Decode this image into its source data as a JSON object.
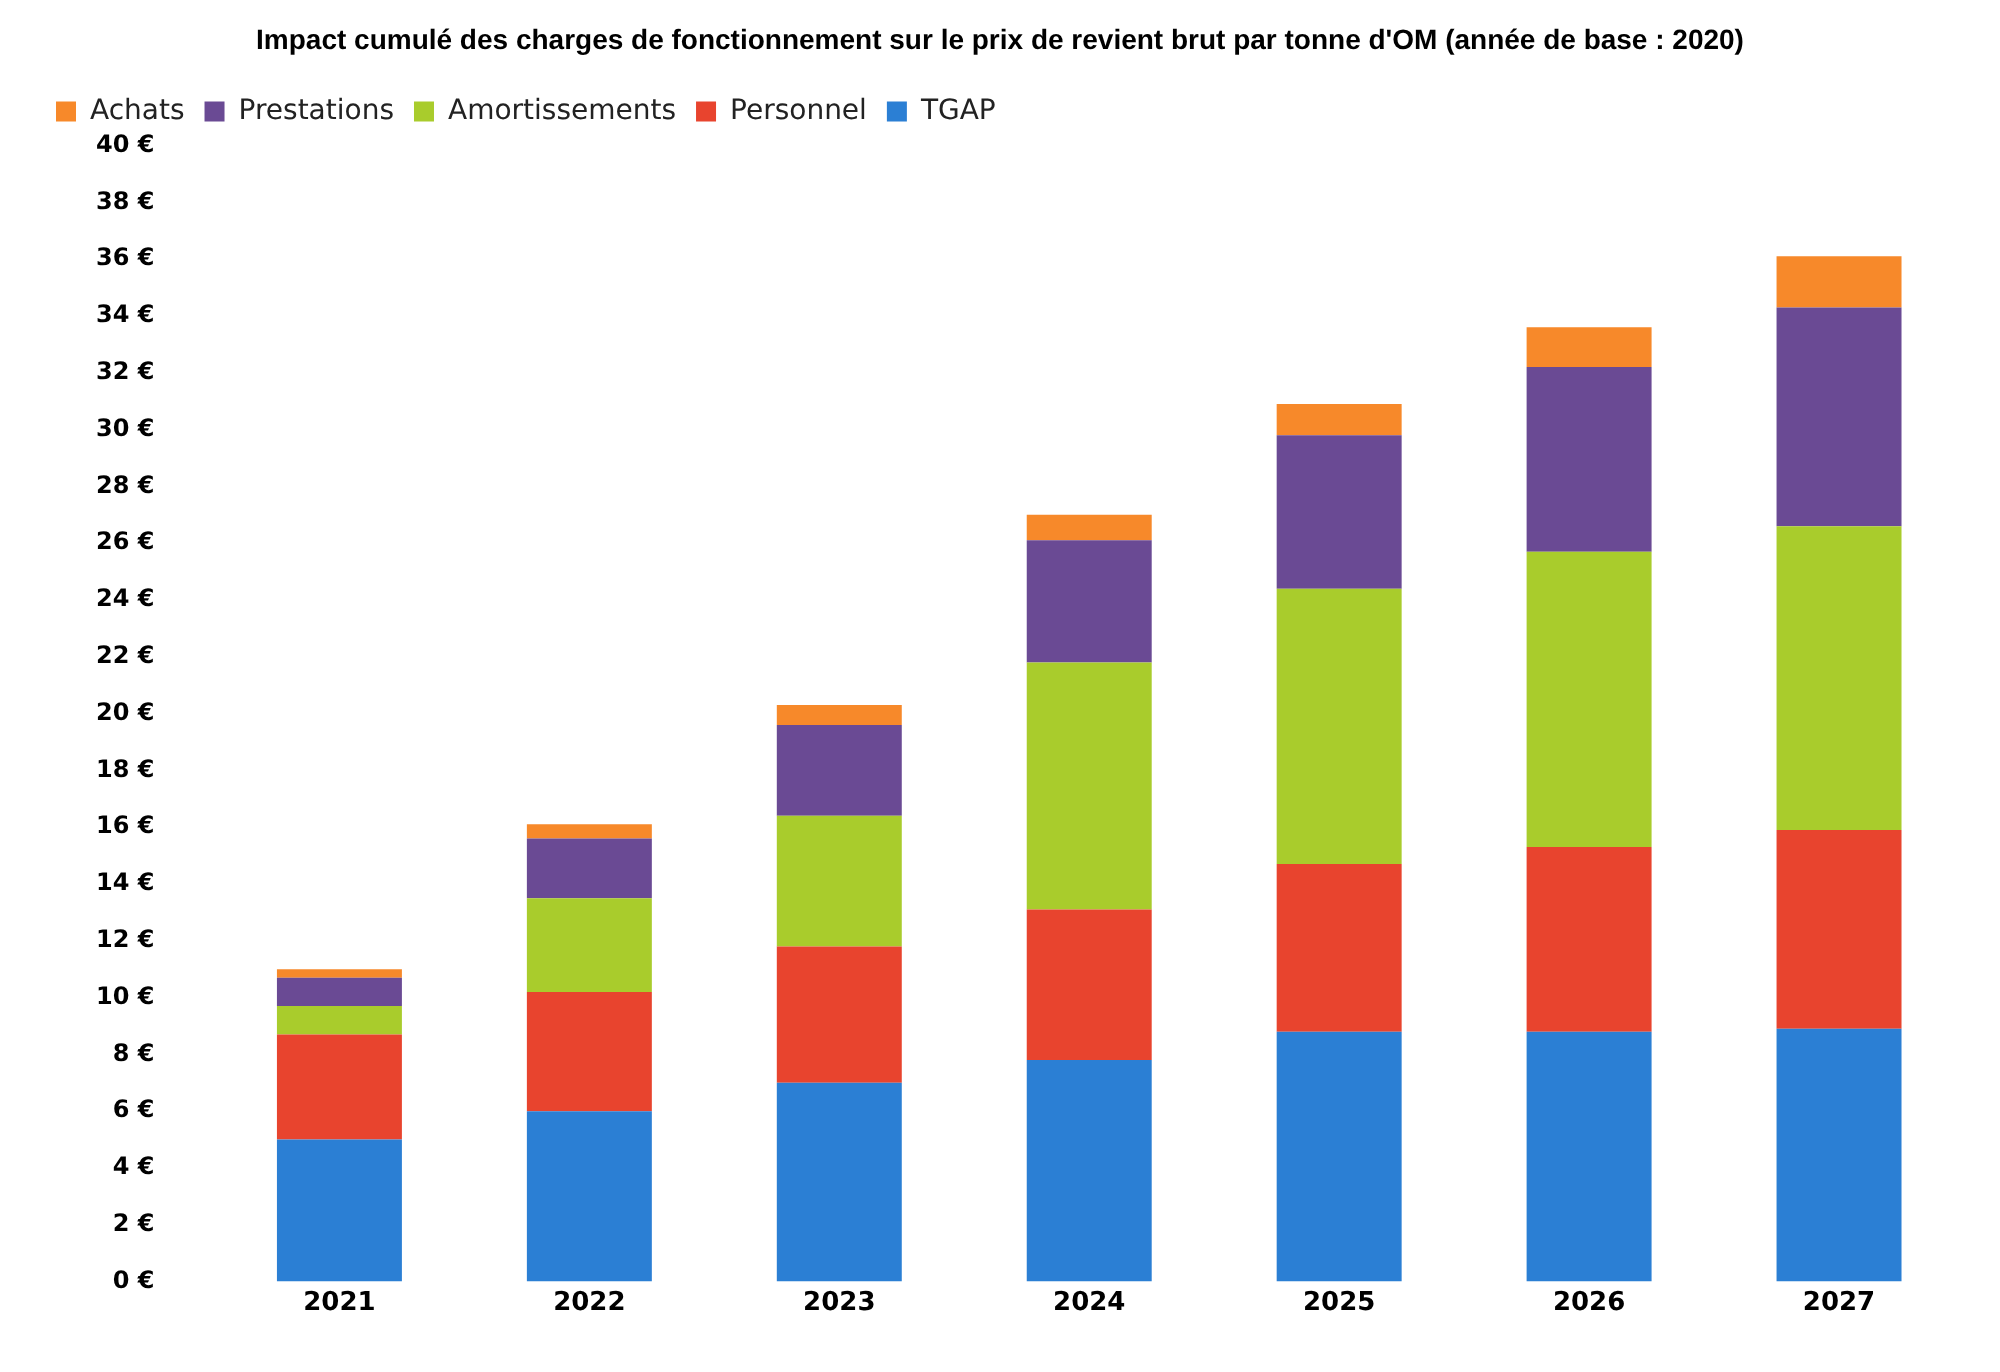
{
  "chart_data": {
    "type": "bar",
    "stacked": true,
    "title": "Impact cumulé des charges de fonctionnement sur le prix de revient brut par tonne d'OM (année de base : 2020)",
    "categories": [
      "2021",
      "2022",
      "2023",
      "2024",
      "2025",
      "2026",
      "2027"
    ],
    "series": [
      {
        "name": "TGAP",
        "color": "#2b7fd4",
        "values": [
          5.0,
          6.0,
          7.0,
          7.8,
          8.8,
          8.8,
          8.9
        ]
      },
      {
        "name": "Personnel",
        "color": "#e8442e",
        "values": [
          3.7,
          4.2,
          4.8,
          5.3,
          5.9,
          6.5,
          7.0
        ]
      },
      {
        "name": "Amortissements",
        "color": "#a9cc2c",
        "values": [
          1.0,
          3.3,
          4.6,
          8.7,
          9.7,
          10.4,
          10.7
        ]
      },
      {
        "name": "Prestations",
        "color": "#6a4a94",
        "values": [
          1.0,
          2.1,
          3.2,
          4.3,
          5.4,
          6.5,
          7.7
        ]
      },
      {
        "name": "Achats",
        "color": "#f7892a",
        "values": [
          0.3,
          0.5,
          0.7,
          0.9,
          1.1,
          1.4,
          1.8
        ]
      }
    ],
    "ylim": [
      0,
      40
    ],
    "yticks": [
      {
        "value": 0,
        "label": "0 €"
      },
      {
        "value": 2,
        "label": "2 €"
      },
      {
        "value": 4,
        "label": "4 €"
      },
      {
        "value": 6,
        "label": "6 €"
      },
      {
        "value": 8,
        "label": "8 €"
      },
      {
        "value": 10,
        "label": "10 €"
      },
      {
        "value": 12,
        "label": "12 €"
      },
      {
        "value": 14,
        "label": "14 €"
      },
      {
        "value": 16,
        "label": "16 €"
      },
      {
        "value": 18,
        "label": "18 €"
      },
      {
        "value": 20,
        "label": "20 €"
      },
      {
        "value": 22,
        "label": "22 €"
      },
      {
        "value": 24,
        "label": "24 €"
      },
      {
        "value": 26,
        "label": "26 €"
      },
      {
        "value": 28,
        "label": "28 €"
      },
      {
        "value": 30,
        "label": "30 €"
      },
      {
        "value": 32,
        "label": "32 €"
      },
      {
        "value": 34,
        "label": "34 €"
      },
      {
        "value": 36,
        "label": "36 €"
      },
      {
        "value": 38,
        "label": "38 €"
      },
      {
        "value": 40,
        "label": "40 €"
      }
    ],
    "grid": false,
    "legend": "top left"
  }
}
